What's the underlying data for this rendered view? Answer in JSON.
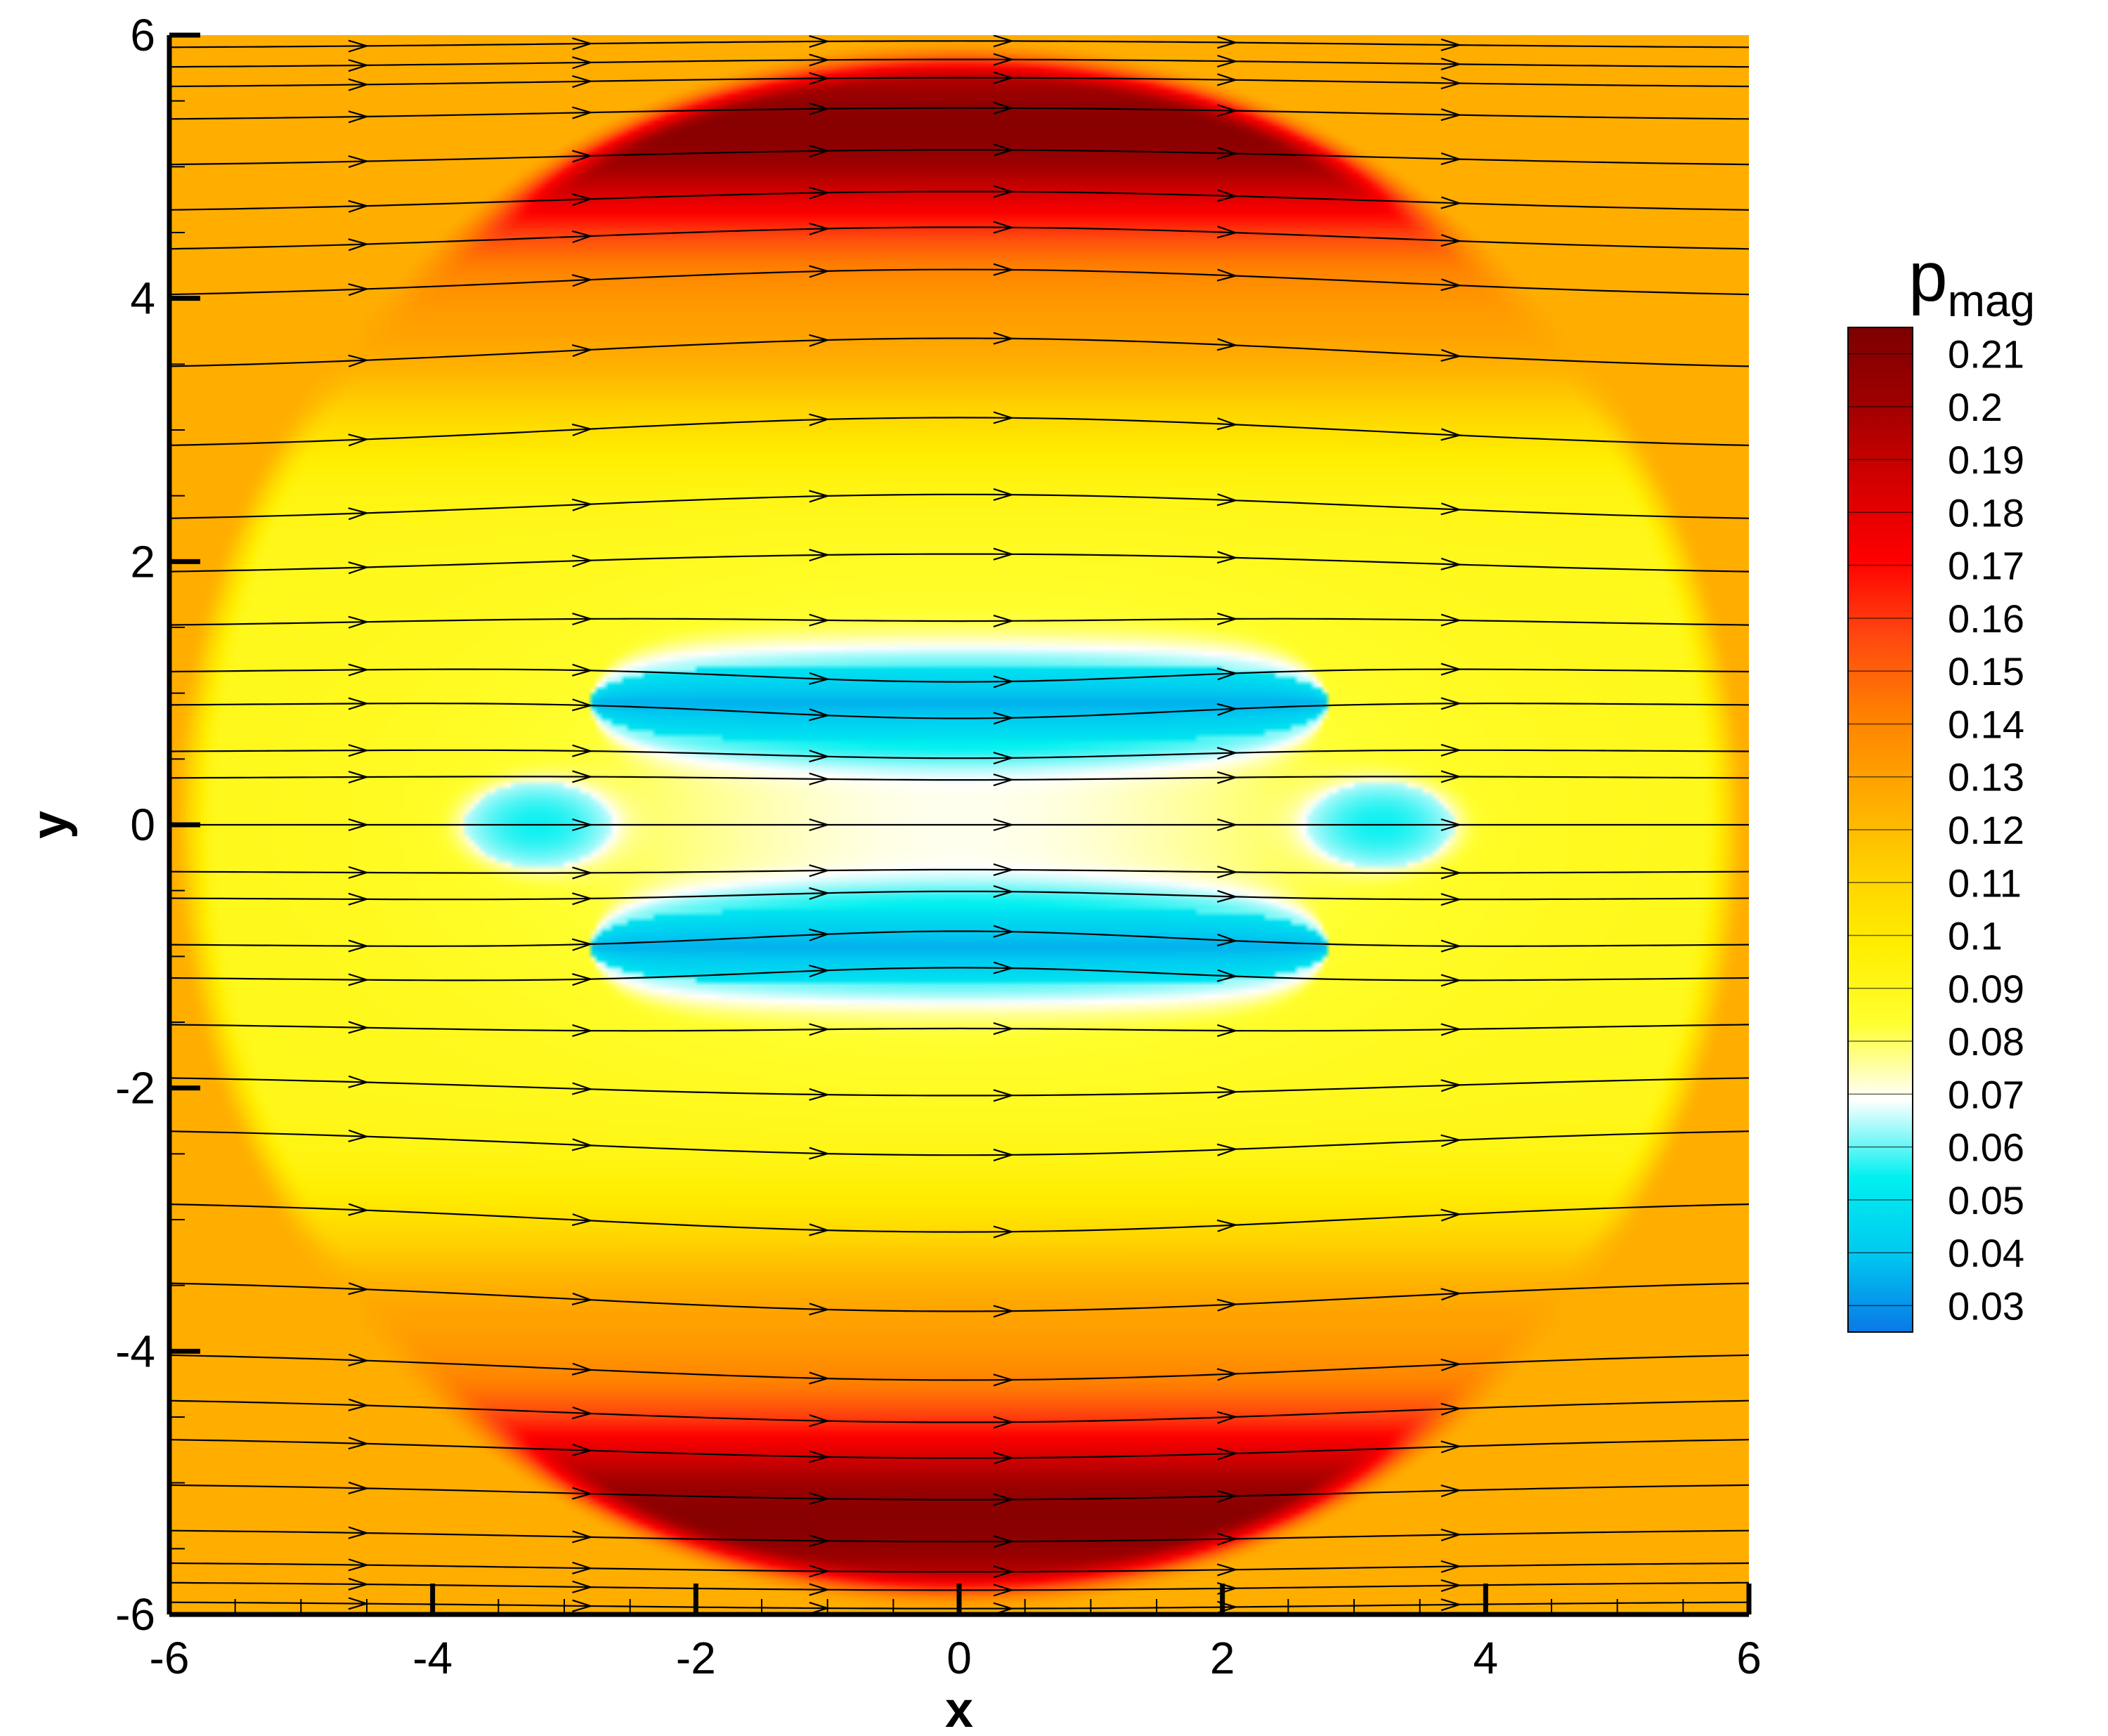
{
  "chart_data": {
    "type": "heatmap",
    "title": "",
    "xlabel": "x",
    "ylabel": "y",
    "xlim": [
      -6,
      6
    ],
    "ylim": [
      -6,
      6
    ],
    "x_ticks": [
      -6,
      -4,
      -2,
      0,
      2,
      4,
      6
    ],
    "y_ticks": [
      -6,
      -4,
      -2,
      0,
      2,
      4,
      6
    ],
    "grid": false,
    "colorbar": {
      "title": "p",
      "title_subscript": "mag",
      "placement": "right",
      "levels": [
        0.21,
        0.2,
        0.19,
        0.18,
        0.17,
        0.16,
        0.15,
        0.14,
        0.13,
        0.12,
        0.11,
        0.1,
        0.09,
        0.08,
        0.07,
        0.06,
        0.05,
        0.04,
        0.03
      ],
      "level_labels": [
        "0.21",
        "0.2",
        "0.19",
        "0.18",
        "0.17",
        "0.16",
        "0.15",
        "0.14",
        "0.13",
        "0.12",
        "0.11",
        "0.1",
        "0.09",
        "0.08",
        "0.07",
        "0.06",
        "0.05",
        "0.04",
        "0.03"
      ],
      "range": [
        0.025,
        0.215
      ]
    },
    "field": {
      "background_value": 0.125,
      "bubble_radius": 6.0,
      "max_value": 0.215,
      "low_regions": [
        {
          "name": "upper-slab",
          "x_range": [
            -2.8,
            2.8
          ],
          "y_range": [
            0.65,
            1.2
          ],
          "min_value": 0.035
        },
        {
          "name": "lower-slab",
          "x_range": [
            -2.8,
            2.8
          ],
          "y_range": [
            -1.2,
            -0.65
          ],
          "min_value": 0.035
        },
        {
          "name": "left-lobe",
          "center": [
            -3.2,
            0
          ],
          "min_value": 0.055
        },
        {
          "name": "right-lobe",
          "center": [
            3.2,
            0
          ],
          "min_value": 0.055
        }
      ]
    },
    "streamlines": {
      "direction": "+x",
      "y_starts": [
        -5.9,
        -5.75,
        -5.6,
        -5.35,
        -5.0,
        -4.65,
        -4.35,
        -4.0,
        -3.45,
        -2.85,
        -2.3,
        -1.9,
        -1.5,
        -1.15,
        -0.9,
        -0.55,
        -0.35,
        0,
        0.35,
        0.55,
        0.9,
        1.15,
        1.5,
        1.9,
        2.3,
        2.85,
        3.45,
        4.0,
        4.35,
        4.65,
        5.0,
        5.35,
        5.6,
        5.75,
        5.9
      ],
      "arrow_x": [
        -4.5,
        -2.8,
        -1.0,
        0.4,
        2.1,
        3.8
      ]
    },
    "colors": {
      "colormap": [
        "#0a78e6",
        "#00c8f0",
        "#00f0f0",
        "#ffffff",
        "#ffff30",
        "#ffee00",
        "#ffd000",
        "#ffa800",
        "#ff8000",
        "#ff4810",
        "#ff0000",
        "#d40000",
        "#a00000",
        "#7d0000"
      ],
      "streamline": "#000000",
      "axes": "#000000"
    }
  }
}
